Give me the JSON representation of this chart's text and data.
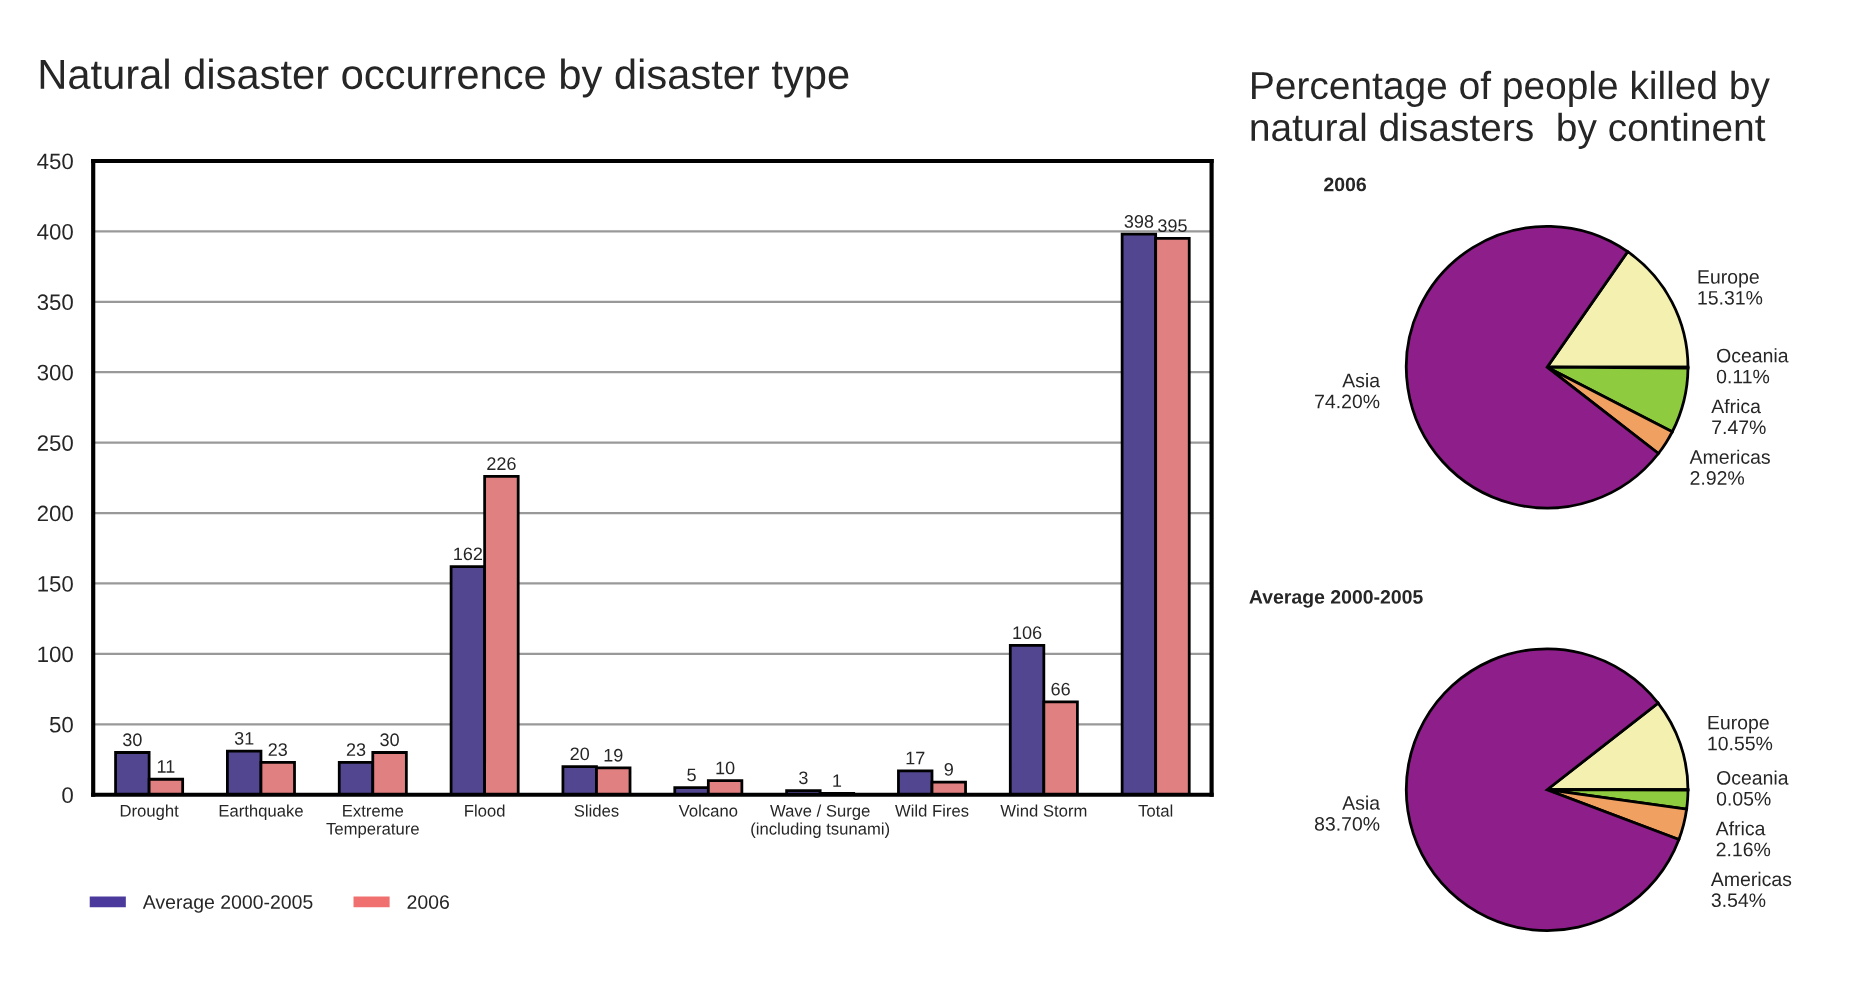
{
  "chart_data": [
    {
      "type": "bar",
      "title": "Natural disaster occurrence by disaster type",
      "categories": [
        "Drought",
        "Earthquake",
        "Extreme\nTemperature",
        "Flood",
        "Slides",
        "Volcano",
        "Wave / Surge\n(including tsunami)",
        "Wild Fires",
        "Wind Storm",
        "Total"
      ],
      "series": [
        {
          "name": "Average 2000-2005",
          "color": "#4b3a9c",
          "values": [
            30,
            31,
            23,
            162,
            20,
            5,
            3,
            17,
            106,
            398
          ]
        },
        {
          "name": "2006",
          "color": "#f07070",
          "values": [
            11,
            23,
            30,
            226,
            19,
            10,
            1,
            9,
            66,
            395
          ]
        }
      ],
      "ylim": [
        0,
        450
      ],
      "yticks": [
        0,
        50,
        100,
        150,
        200,
        250,
        300,
        350,
        400,
        450
      ],
      "grid": "y",
      "legend": "bottom left",
      "data_labels": true
    },
    {
      "type": "pie",
      "title": "Percentage of people killed by\nnatural disasters  by continent",
      "subtitle": "2006",
      "categories": [
        "Europe",
        "Oceania",
        "Africa",
        "Americas",
        "Asia"
      ],
      "values": [
        15.31,
        0.11,
        7.47,
        2.92,
        74.2
      ],
      "value_labels": [
        "15.31%",
        "0.11%",
        "7.47%",
        "2.92%",
        "74.20%"
      ],
      "colors": [
        "#f3f0b0",
        "#2e6b2e",
        "#8fcb3f",
        "#f0a060",
        "#8e1f8a"
      ]
    },
    {
      "type": "pie",
      "title": "Average 2000-2005",
      "categories": [
        "Europe",
        "Oceania",
        "Africa",
        "Americas",
        "Asia"
      ],
      "values": [
        10.55,
        0.05,
        2.16,
        3.54,
        83.7
      ],
      "value_labels": [
        "10.55%",
        "0.05%",
        "2.16%",
        "3.54%",
        "83.70%"
      ],
      "colors": [
        "#f3f0b0",
        "#2e6b2e",
        "#8fcb3f",
        "#f0a060",
        "#8e1f8a"
      ]
    }
  ]
}
